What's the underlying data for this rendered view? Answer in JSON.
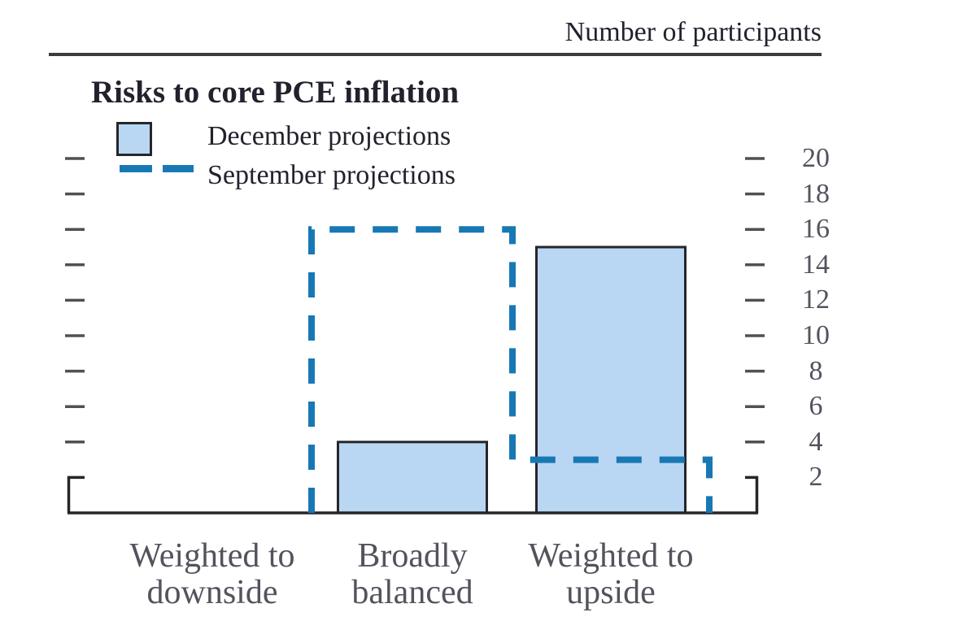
{
  "header": {
    "axis_title": "Number of participants"
  },
  "chart_data": {
    "type": "bar",
    "title": "Risks to core PCE inflation",
    "ylabel": "Number of participants",
    "xlabel": "",
    "categories": [
      "Weighted to downside",
      "Broadly balanced",
      "Weighted to upside"
    ],
    "series": [
      {
        "name": "December projections",
        "style": "filled-bar",
        "values": [
          0,
          4,
          15
        ]
      },
      {
        "name": "September projections",
        "style": "dashed-outline",
        "values": [
          0,
          16,
          3
        ]
      }
    ],
    "ylim": [
      0,
      21
    ],
    "yticks": [
      2,
      4,
      6,
      8,
      10,
      12,
      14,
      16,
      18,
      20
    ],
    "legend_position": "top-left",
    "grid": false
  },
  "colors": {
    "bar_fill": "#b9d7f3",
    "bar_border": "#26262a",
    "september_line": "#1878b4",
    "axis_dark": "#26262a",
    "tick_gray": "#505055",
    "text_dark": "#22222e",
    "text_gray": "#53535e"
  }
}
